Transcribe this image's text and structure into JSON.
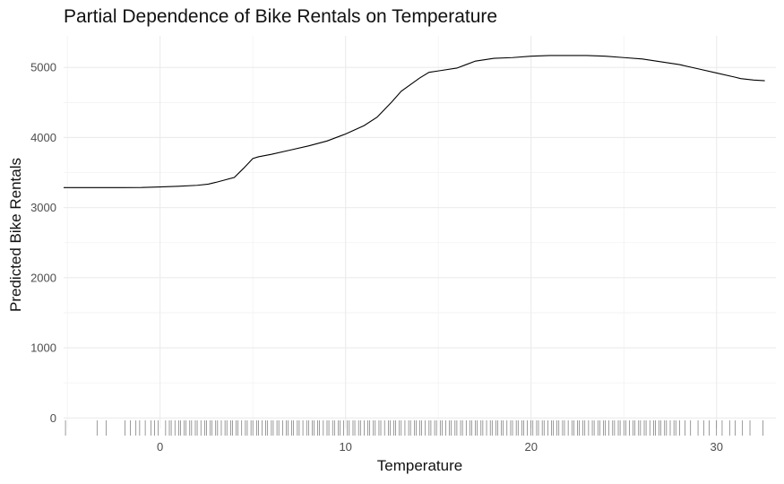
{
  "chart_data": {
    "type": "line",
    "title": "Partial Dependence of Bike Rentals on Temperature",
    "xlabel": "Temperature",
    "ylabel": "Predicted Bike Rentals",
    "xlim": [
      -5.2,
      33.2
    ],
    "ylim": [
      -150,
      5450
    ],
    "x_ticks": [
      0,
      10,
      20,
      30
    ],
    "y_ticks": [
      0,
      1000,
      2000,
      3000,
      4000,
      5000
    ],
    "grid": true,
    "legend": "none",
    "series": [
      {
        "x": [
          -5.2,
          -4,
          -3,
          -2,
          -1,
          0,
          1,
          2,
          2.6,
          3,
          3.5,
          4,
          4.5,
          5,
          5.3,
          6,
          7,
          8,
          9,
          10,
          11,
          11.7,
          12.5,
          13,
          14,
          14.5,
          15,
          16,
          16.5,
          17,
          18,
          19,
          20,
          21,
          22,
          23,
          24,
          25,
          26,
          27,
          28,
          29,
          30,
          31,
          31.3,
          32,
          32.6
        ],
        "y": [
          3285,
          3285,
          3285,
          3285,
          3287,
          3295,
          3305,
          3318,
          3335,
          3360,
          3395,
          3430,
          3560,
          3700,
          3725,
          3760,
          3820,
          3880,
          3950,
          4050,
          4170,
          4290,
          4510,
          4660,
          4850,
          4930,
          4950,
          4990,
          5040,
          5090,
          5130,
          5140,
          5160,
          5170,
          5170,
          5170,
          5160,
          5140,
          5120,
          5080,
          5040,
          4980,
          4920,
          4860,
          4840,
          4820,
          4810
        ]
      }
    ],
    "rug_x": [
      -5.1,
      -3.4,
      -2.9,
      -1.9,
      -1.6,
      -1.3,
      -1.1,
      -0.8,
      -0.5,
      -0.3,
      -0.1,
      0.3,
      0.5,
      0.6,
      0.8,
      1.0,
      1.1,
      1.3,
      1.4,
      1.6,
      1.7,
      1.9,
      2.0,
      2.2,
      2.4,
      2.5,
      2.7,
      2.8,
      3.0,
      3.1,
      3.3,
      3.5,
      3.6,
      3.8,
      3.9,
      4.1,
      4.2,
      4.4,
      4.6,
      4.7,
      4.9,
      5.0,
      5.2,
      5.3,
      5.5,
      5.7,
      5.8,
      6.0,
      6.1,
      6.3,
      6.4,
      6.6,
      6.8,
      6.9,
      7.1,
      7.2,
      7.4,
      7.5,
      7.7,
      7.9,
      8.0,
      8.2,
      8.3,
      8.5,
      8.6,
      8.8,
      9.0,
      9.1,
      9.3,
      9.4,
      9.6,
      9.7,
      9.9,
      10.1,
      10.2,
      10.4,
      10.5,
      10.7,
      10.8,
      11.0,
      11.2,
      11.3,
      11.5,
      11.6,
      11.8,
      11.9,
      12.1,
      12.3,
      12.4,
      12.6,
      12.7,
      12.9,
      13.0,
      13.2,
      13.4,
      13.5,
      13.7,
      13.8,
      14.0,
      14.1,
      14.3,
      14.5,
      14.6,
      14.8,
      14.9,
      15.1,
      15.2,
      15.4,
      15.6,
      15.7,
      15.9,
      16.0,
      16.2,
      16.3,
      16.5,
      16.7,
      16.8,
      17.0,
      17.1,
      17.3,
      17.4,
      17.6,
      17.8,
      17.9,
      18.1,
      18.2,
      18.4,
      18.5,
      18.7,
      18.9,
      19.0,
      19.2,
      19.3,
      19.5,
      19.6,
      19.8,
      20.0,
      20.1,
      20.3,
      20.4,
      20.6,
      20.7,
      20.9,
      21.1,
      21.2,
      21.4,
      21.5,
      21.7,
      21.8,
      22.0,
      22.2,
      22.3,
      22.5,
      22.6,
      22.8,
      22.9,
      23.1,
      23.3,
      23.4,
      23.6,
      23.7,
      23.9,
      24.0,
      24.2,
      24.4,
      24.5,
      24.7,
      24.8,
      25.0,
      25.1,
      25.3,
      25.5,
      25.6,
      25.8,
      25.9,
      26.1,
      26.2,
      26.4,
      26.6,
      26.7,
      26.9,
      27.0,
      27.2,
      27.3,
      27.5,
      27.7,
      27.8,
      28.0,
      28.3,
      28.6,
      29.0,
      29.3,
      29.6,
      30.0,
      30.3,
      30.7,
      31.0,
      31.4,
      31.8,
      32.5
    ]
  }
}
